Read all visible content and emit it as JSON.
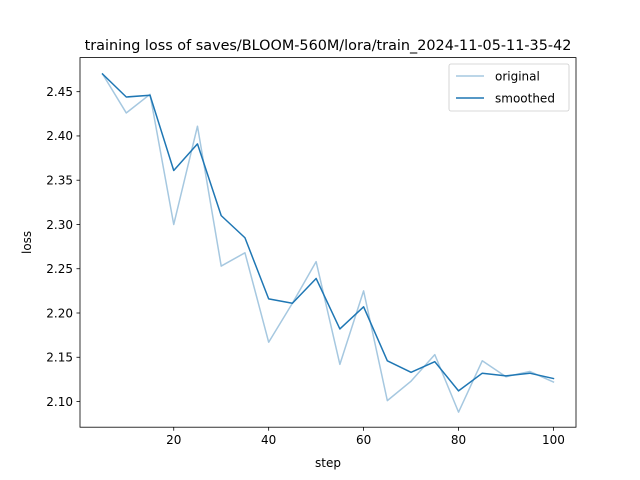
{
  "chart_data": {
    "type": "line",
    "title": "training loss of saves/BLOOM-560M/lora/train_2024-11-05-11-35-42",
    "xlabel": "step",
    "ylabel": "loss",
    "xlim": [
      0.25,
      104.75
    ],
    "ylim": [
      2.071,
      2.4885
    ],
    "xticks": [
      20,
      40,
      60,
      80,
      100
    ],
    "xtick_labels": [
      "20",
      "40",
      "60",
      "80",
      "100"
    ],
    "yticks": [
      2.1,
      2.15,
      2.2,
      2.25,
      2.3,
      2.35,
      2.4,
      2.45
    ],
    "ytick_labels": [
      "2.10",
      "2.15",
      "2.20",
      "2.25",
      "2.30",
      "2.35",
      "2.40",
      "2.45"
    ],
    "grid": false,
    "legend_position": "top-right",
    "x": [
      5,
      10,
      15,
      20,
      25,
      30,
      35,
      40,
      45,
      50,
      55,
      60,
      65,
      70,
      75,
      80,
      85,
      90,
      95,
      100
    ],
    "series": [
      {
        "name": "original",
        "color": "#a6c8e0",
        "values": [
          2.47,
          2.426,
          2.447,
          2.3,
          2.411,
          2.253,
          2.268,
          2.167,
          2.211,
          2.258,
          2.142,
          2.225,
          2.101,
          2.123,
          2.153,
          2.088,
          2.146,
          2.128,
          2.134,
          2.122
        ]
      },
      {
        "name": "smoothed",
        "color": "#1f77b4",
        "values": [
          2.47,
          2.444,
          2.446,
          2.361,
          2.391,
          2.31,
          2.285,
          2.216,
          2.211,
          2.239,
          2.182,
          2.207,
          2.146,
          2.133,
          2.145,
          2.112,
          2.132,
          2.129,
          2.132,
          2.126
        ]
      }
    ]
  }
}
